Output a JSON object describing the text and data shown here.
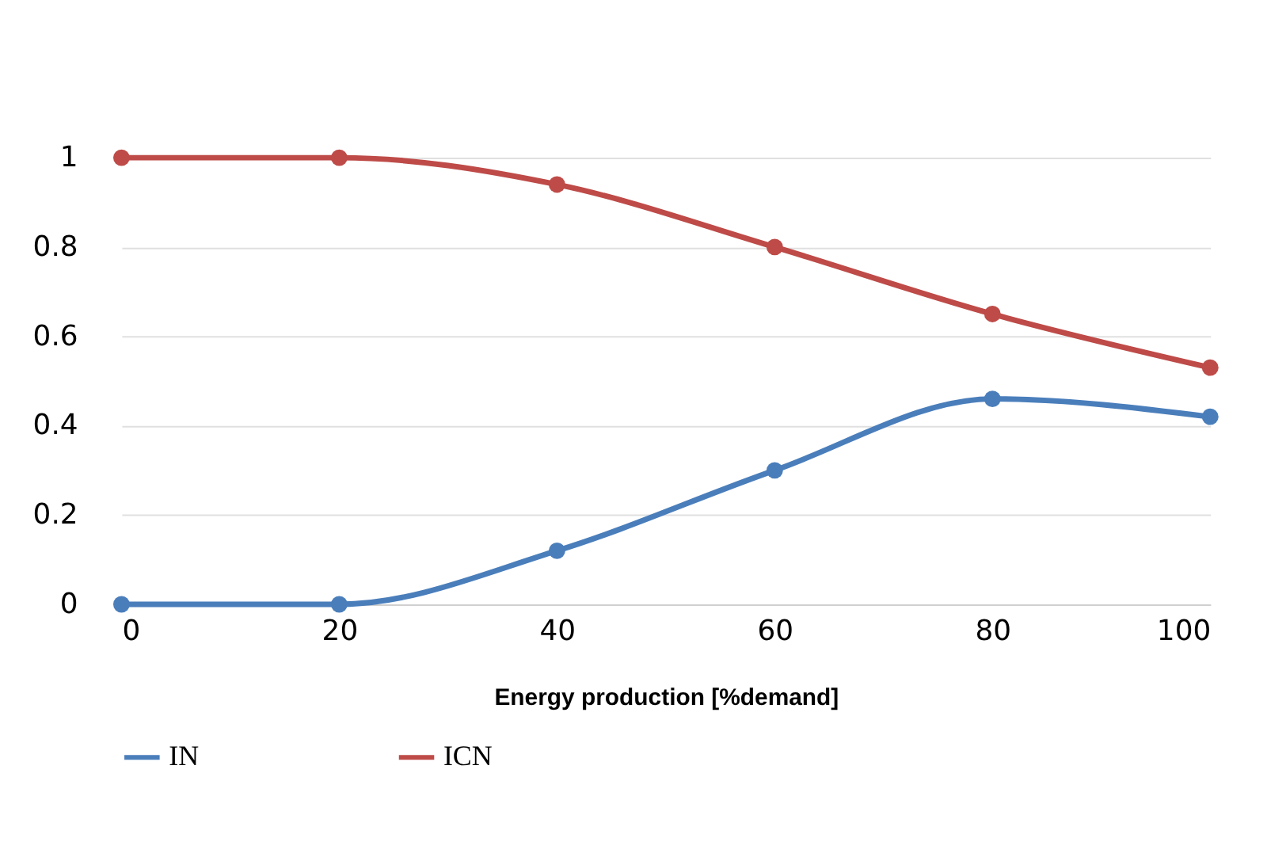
{
  "chart_data": {
    "type": "line",
    "xlabel": "Energy production [%demand]",
    "x": [
      0,
      20,
      40,
      60,
      80,
      100
    ],
    "series": [
      {
        "name": "IN",
        "color": "#4a7ebb",
        "values": [
          0,
          0,
          0.12,
          0.3,
          0.46,
          0.42
        ]
      },
      {
        "name": "ICN",
        "color": "#be4b48",
        "values": [
          1,
          1,
          0.94,
          0.8,
          0.65,
          0.53
        ]
      }
    ],
    "xlim": [
      0,
      100
    ],
    "xticks": [
      0,
      20,
      40,
      60,
      80,
      100
    ],
    "ylim": [
      0,
      1
    ],
    "yticks": [
      0,
      0.2,
      0.4,
      0.6,
      0.8,
      1
    ],
    "grid": "y",
    "legend": "bottom",
    "marker": "circle",
    "line_style": "solid"
  }
}
